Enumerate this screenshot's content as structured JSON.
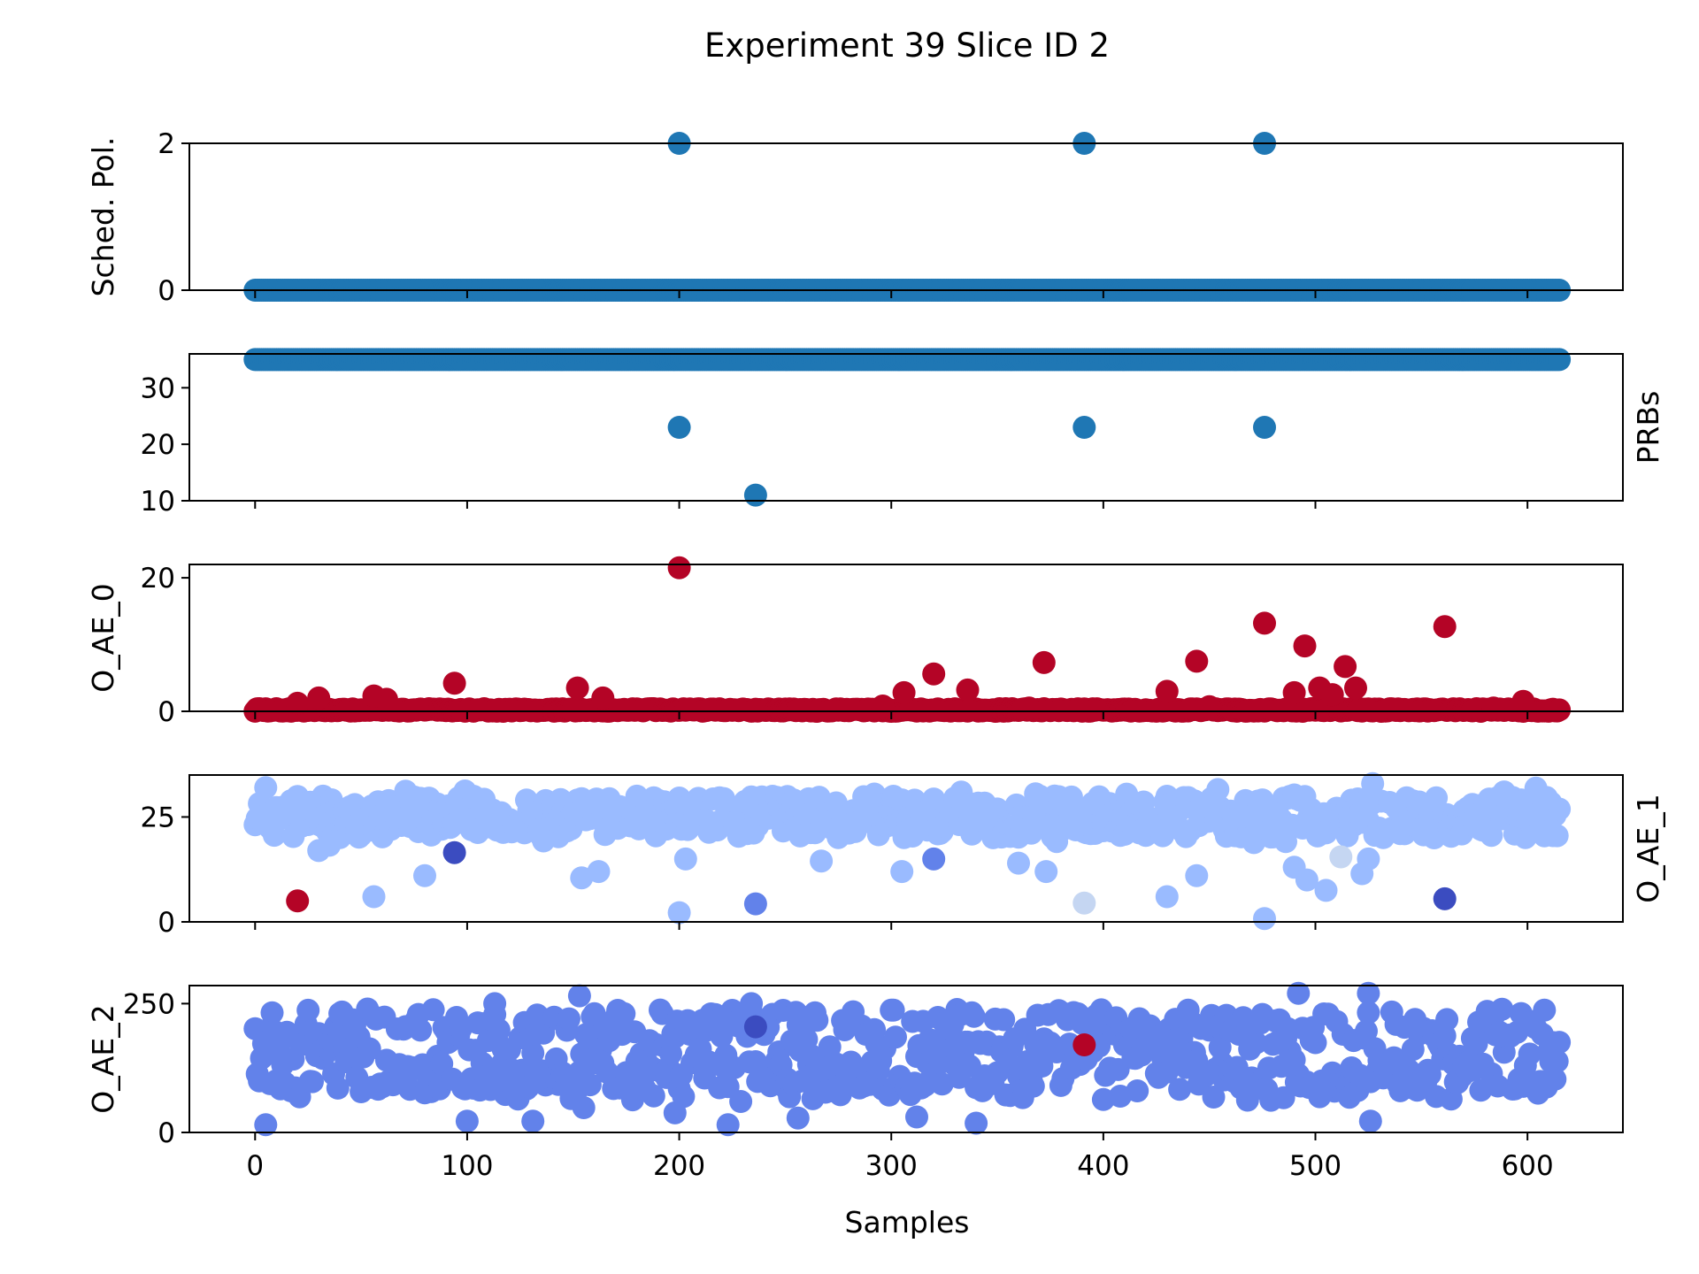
{
  "title": "Experiment 39 Slice ID 2",
  "xlabel": "Samples",
  "x_ticks": [
    0,
    100,
    200,
    300,
    400,
    500,
    600
  ],
  "x_range": [
    -31,
    645
  ],
  "n_samples": 616,
  "colors": {
    "blue": "#1f77b4",
    "red": "#b40426",
    "light_blue": "#9abbff",
    "mid_blue": "#6282ea",
    "dark_blue": "#3b4cc0",
    "pale": "#c5d6f2"
  },
  "chart_data": [
    {
      "type": "scatter",
      "ylabel": "Sched. Pol.",
      "ylabel_side": "left",
      "ylim": [
        0,
        2
      ],
      "yticks": [
        0,
        2
      ],
      "series": [
        {
          "x": [
            0,
            615
          ],
          "y": [
            0,
            0
          ],
          "color": "blue",
          "note": "dense: value 0 for all samples 0-615"
        },
        {
          "x": [
            200,
            391,
            476
          ],
          "y": [
            2,
            2,
            2
          ],
          "color": "blue"
        }
      ]
    },
    {
      "type": "scatter",
      "ylabel": "PRBs",
      "ylabel_side": "right",
      "ylim": [
        10,
        36
      ],
      "yticks": [
        10,
        20,
        30
      ],
      "series": [
        {
          "x": [
            0,
            615
          ],
          "y": [
            35,
            35
          ],
          "color": "blue",
          "note": "dense: value 35 for all samples 0-615"
        },
        {
          "x": [
            200,
            391,
            476,
            236
          ],
          "y": [
            23,
            23,
            23,
            11
          ],
          "color": "blue"
        }
      ]
    },
    {
      "type": "scatter",
      "ylabel": "O_AE_0",
      "ylabel_side": "left",
      "ylim": [
        0,
        22
      ],
      "yticks": [
        0,
        20
      ],
      "series": [
        {
          "x": [
            0,
            615
          ],
          "y": [
            0,
            0
          ],
          "color": "red",
          "note": "dense: near 0 for all samples"
        },
        {
          "x": [
            20,
            30,
            56,
            62,
            94,
            152,
            164,
            200,
            296,
            306,
            320,
            336,
            365,
            372,
            430,
            444,
            450,
            476,
            490,
            495,
            502,
            508,
            514,
            519,
            561,
            584,
            598
          ],
          "y": [
            1.2,
            2.0,
            2.3,
            1.8,
            4.2,
            3.5,
            2.0,
            21.5,
            0.8,
            2.8,
            5.6,
            3.2,
            0.5,
            7.3,
            3.0,
            7.5,
            0.7,
            13.2,
            2.8,
            9.8,
            3.5,
            2.5,
            6.7,
            3.5,
            12.7,
            0.5,
            1.5
          ],
          "color": "red"
        }
      ]
    },
    {
      "type": "scatter",
      "ylabel": "O_AE_1",
      "ylabel_side": "right",
      "ylim": [
        0,
        35
      ],
      "yticks": [
        0,
        25
      ],
      "series": [
        {
          "x": [
            0,
            615
          ],
          "y": [
            15,
            32
          ],
          "color": "light_blue",
          "note": "dense noisy cloud, mostly 20-30"
        },
        {
          "x": [
            5,
            30,
            56,
            80,
            154,
            162,
            200,
            203,
            267,
            305,
            360,
            373,
            430,
            444,
            476,
            490,
            496,
            505,
            522,
            525
          ],
          "y": [
            32,
            17,
            6,
            11,
            10.5,
            12,
            2.2,
            15,
            14.5,
            12,
            14,
            12,
            6,
            11,
            0.8,
            13,
            10,
            7.5,
            11.5,
            15
          ],
          "color": "light_blue"
        },
        {
          "x": [
            20
          ],
          "y": [
            5
          ],
          "color": "red"
        },
        {
          "x": [
            94,
            561
          ],
          "y": [
            16.5,
            5.5
          ],
          "color": "dark_blue"
        },
        {
          "x": [
            236,
            320
          ],
          "y": [
            4.3,
            15
          ],
          "color": "mid_blue"
        },
        {
          "x": [
            391,
            512
          ],
          "y": [
            4.5,
            15.5
          ],
          "color": "pale"
        }
      ]
    },
    {
      "type": "scatter",
      "ylabel": "O_AE_2",
      "ylabel_side": "left",
      "ylim": [
        0,
        285
      ],
      "yticks": [
        0,
        250
      ],
      "series": [
        {
          "x": [
            0,
            615
          ],
          "y": [
            60,
            250
          ],
          "color": "mid_blue",
          "note": "dense noisy cloud, mostly 80-240"
        },
        {
          "x": [
            5,
            100,
            131,
            155,
            198,
            223,
            256,
            312,
            340,
            526,
            153,
            113,
            234,
            492,
            525
          ],
          "y": [
            15,
            22,
            22,
            48,
            38,
            15,
            28,
            30,
            18,
            22,
            265,
            250,
            250,
            270,
            270
          ],
          "color": "mid_blue"
        },
        {
          "x": [
            236
          ],
          "y": [
            205
          ],
          "color": "dark_blue"
        },
        {
          "x": [
            391
          ],
          "y": [
            170
          ],
          "color": "red"
        }
      ]
    }
  ]
}
